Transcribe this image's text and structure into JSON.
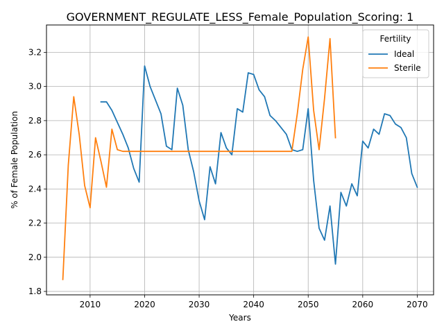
{
  "chart_data": {
    "type": "line",
    "title": "GOVERNMENT_REGULATE_LESS_Female_Population_Scoring: 1",
    "xlabel": "Years",
    "ylabel": "% of Female Population",
    "xlim": [
      2002,
      2073
    ],
    "ylim": [
      1.78,
      3.36
    ],
    "xticks": [
      2010,
      2020,
      2030,
      2040,
      2050,
      2060,
      2070
    ],
    "yticks": [
      1.8,
      2.0,
      2.2,
      2.4,
      2.6,
      2.8,
      3.0,
      3.2
    ],
    "ytick_labels": [
      "1.8",
      "2.0",
      "2.2",
      "2.4",
      "2.6",
      "2.8",
      "3.0",
      "3.2"
    ],
    "grid": true,
    "legend": {
      "title": "Fertility",
      "placement": "top-right"
    },
    "series": [
      {
        "name": "Ideal",
        "color": "#1f77b4",
        "points": [
          [
            2012,
            2.91
          ],
          [
            2013,
            2.91
          ],
          [
            2014,
            2.86
          ],
          [
            2015,
            2.79
          ],
          [
            2016,
            2.72
          ],
          [
            2017,
            2.64
          ],
          [
            2018,
            2.52
          ],
          [
            2019,
            2.44
          ],
          [
            2020,
            3.12
          ],
          [
            2021,
            3.0
          ],
          [
            2022,
            2.92
          ],
          [
            2023,
            2.84
          ],
          [
            2024,
            2.65
          ],
          [
            2025,
            2.63
          ],
          [
            2026,
            2.99
          ],
          [
            2027,
            2.89
          ],
          [
            2028,
            2.63
          ],
          [
            2029,
            2.5
          ],
          [
            2030,
            2.33
          ],
          [
            2031,
            2.22
          ],
          [
            2032,
            2.53
          ],
          [
            2033,
            2.43
          ],
          [
            2034,
            2.73
          ],
          [
            2035,
            2.64
          ],
          [
            2036,
            2.6
          ],
          [
            2037,
            2.87
          ],
          [
            2038,
            2.85
          ],
          [
            2039,
            3.08
          ],
          [
            2040,
            3.07
          ],
          [
            2041,
            2.98
          ],
          [
            2042,
            2.94
          ],
          [
            2043,
            2.83
          ],
          [
            2044,
            2.8
          ],
          [
            2045,
            2.76
          ],
          [
            2046,
            2.72
          ],
          [
            2047,
            2.63
          ],
          [
            2048,
            2.62
          ],
          [
            2049,
            2.63
          ],
          [
            2050,
            2.87
          ],
          [
            2051,
            2.45
          ],
          [
            2052,
            2.17
          ],
          [
            2053,
            2.1
          ],
          [
            2054,
            2.3
          ],
          [
            2055,
            1.96
          ],
          [
            2056,
            2.38
          ],
          [
            2057,
            2.3
          ],
          [
            2058,
            2.43
          ],
          [
            2059,
            2.36
          ],
          [
            2060,
            2.68
          ],
          [
            2061,
            2.64
          ],
          [
            2062,
            2.75
          ],
          [
            2063,
            2.72
          ],
          [
            2064,
            2.84
          ],
          [
            2065,
            2.83
          ],
          [
            2066,
            2.78
          ],
          [
            2067,
            2.76
          ],
          [
            2068,
            2.7
          ],
          [
            2069,
            2.49
          ],
          [
            2070,
            2.41
          ]
        ]
      },
      {
        "name": "Sterile",
        "color": "#ff7f0e",
        "points": [
          [
            2005,
            1.87
          ],
          [
            2006,
            2.54
          ],
          [
            2007,
            2.94
          ],
          [
            2008,
            2.72
          ],
          [
            2009,
            2.42
          ],
          [
            2010,
            2.29
          ],
          [
            2011,
            2.7
          ],
          [
            2012,
            2.56
          ],
          [
            2013,
            2.41
          ],
          [
            2014,
            2.75
          ],
          [
            2015,
            2.63
          ],
          [
            2016,
            2.62
          ],
          [
            2017,
            2.62
          ],
          [
            2018,
            2.62
          ],
          [
            2019,
            2.62
          ],
          [
            2020,
            2.62
          ],
          [
            2021,
            2.62
          ],
          [
            2022,
            2.62
          ],
          [
            2023,
            2.62
          ],
          [
            2024,
            2.62
          ],
          [
            2025,
            2.62
          ],
          [
            2026,
            2.62
          ],
          [
            2027,
            2.62
          ],
          [
            2028,
            2.62
          ],
          [
            2029,
            2.62
          ],
          [
            2030,
            2.62
          ],
          [
            2031,
            2.62
          ],
          [
            2032,
            2.62
          ],
          [
            2033,
            2.62
          ],
          [
            2034,
            2.62
          ],
          [
            2035,
            2.62
          ],
          [
            2036,
            2.62
          ],
          [
            2037,
            2.62
          ],
          [
            2038,
            2.62
          ],
          [
            2039,
            2.62
          ],
          [
            2040,
            2.62
          ],
          [
            2041,
            2.62
          ],
          [
            2042,
            2.62
          ],
          [
            2043,
            2.62
          ],
          [
            2044,
            2.62
          ],
          [
            2045,
            2.62
          ],
          [
            2046,
            2.62
          ],
          [
            2047,
            2.62
          ],
          [
            2048,
            2.84
          ],
          [
            2049,
            3.1
          ],
          [
            2050,
            3.29
          ],
          [
            2051,
            2.86
          ],
          [
            2052,
            2.63
          ],
          [
            2053,
            2.93
          ],
          [
            2054,
            3.28
          ],
          [
            2055,
            2.7
          ]
        ]
      }
    ]
  }
}
